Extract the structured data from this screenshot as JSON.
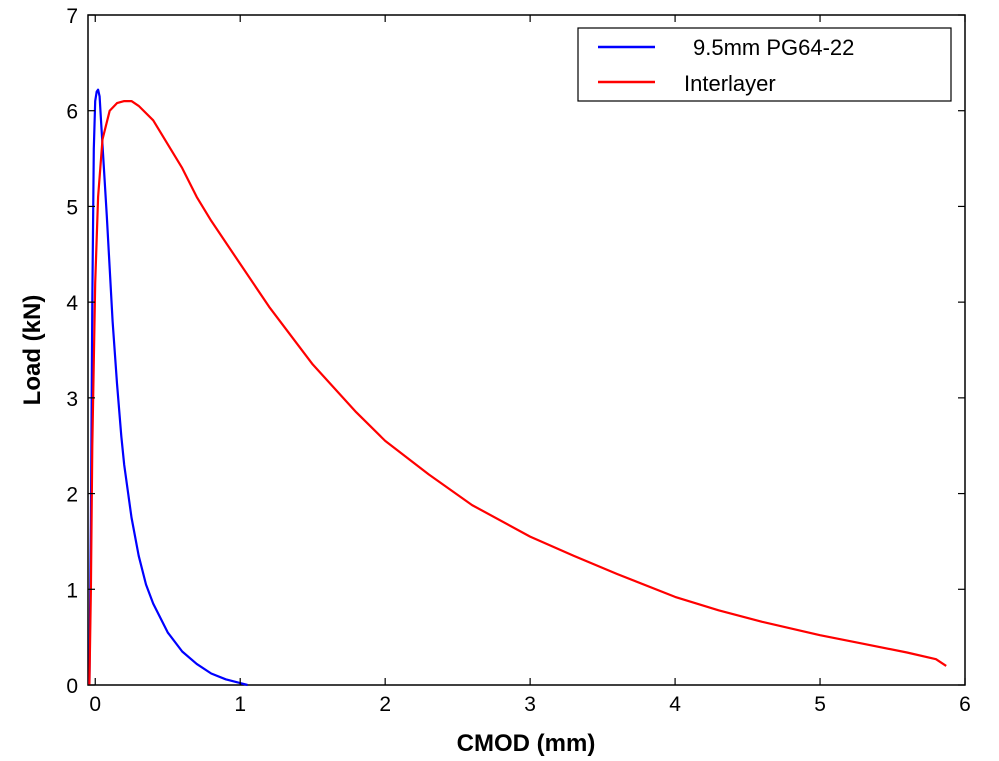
{
  "chart_data": {
    "type": "line",
    "title": "",
    "xlabel": "CMOD (mm)",
    "ylabel": "Load (kN)",
    "xlim": [
      -0.05,
      6
    ],
    "ylim": [
      0,
      7
    ],
    "xticks": [
      "0",
      "1",
      "2",
      "3",
      "4",
      "5",
      "6"
    ],
    "yticks": [
      "0",
      "1",
      "2",
      "3",
      "4",
      "5",
      "6",
      "7"
    ],
    "grid": false,
    "legend_position": "top-right",
    "series": [
      {
        "name": "9.5mm PG64-22",
        "color": "#0000ff",
        "x": [
          -0.04,
          -0.03,
          -0.02,
          -0.01,
          0.0,
          0.01,
          0.02,
          0.03,
          0.04,
          0.06,
          0.08,
          0.1,
          0.12,
          0.15,
          0.18,
          0.2,
          0.25,
          0.3,
          0.35,
          0.4,
          0.5,
          0.6,
          0.7,
          0.8,
          0.9,
          1.0,
          1.05
        ],
        "y": [
          0.0,
          1.7,
          4.0,
          5.6,
          6.1,
          6.2,
          6.22,
          6.15,
          5.9,
          5.4,
          4.9,
          4.35,
          3.8,
          3.15,
          2.6,
          2.3,
          1.75,
          1.35,
          1.05,
          0.85,
          0.55,
          0.35,
          0.22,
          0.12,
          0.06,
          0.02,
          0.0
        ]
      },
      {
        "name": "Interlayer",
        "color": "#ff0000",
        "x": [
          -0.04,
          -0.03,
          -0.02,
          0.0,
          0.02,
          0.05,
          0.1,
          0.15,
          0.2,
          0.25,
          0.3,
          0.4,
          0.5,
          0.6,
          0.7,
          0.8,
          1.0,
          1.2,
          1.5,
          1.8,
          2.0,
          2.3,
          2.6,
          3.0,
          3.3,
          3.6,
          4.0,
          4.3,
          4.6,
          5.0,
          5.3,
          5.6,
          5.8,
          5.87
        ],
        "y": [
          0.0,
          1.0,
          2.5,
          4.2,
          5.1,
          5.7,
          6.0,
          6.08,
          6.1,
          6.1,
          6.05,
          5.9,
          5.65,
          5.4,
          5.1,
          4.85,
          4.4,
          3.95,
          3.35,
          2.85,
          2.55,
          2.2,
          1.88,
          1.55,
          1.35,
          1.16,
          0.92,
          0.78,
          0.66,
          0.52,
          0.43,
          0.34,
          0.27,
          0.2
        ]
      }
    ]
  }
}
